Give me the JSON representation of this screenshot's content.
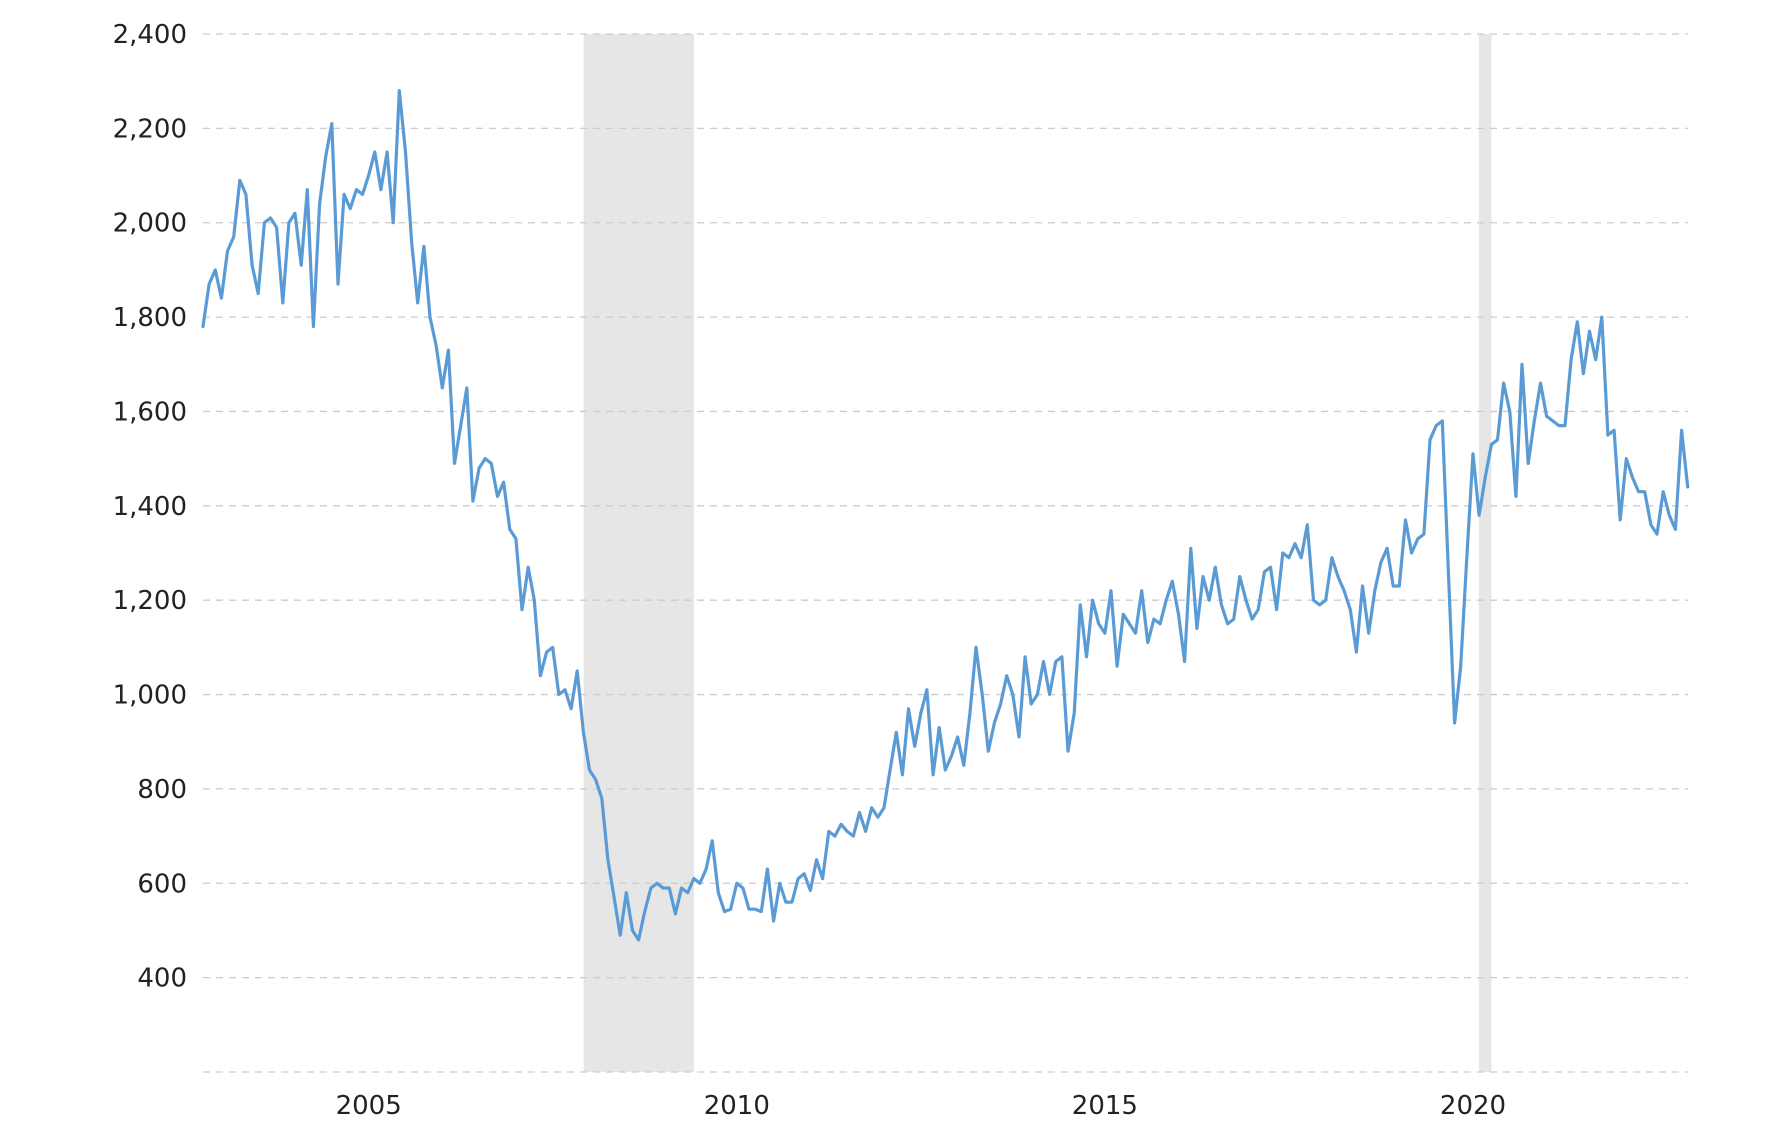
{
  "colors": {
    "line": "#5b9bd5",
    "recession": "#e6e6e6",
    "grid": "#cccccc",
    "text": "#222222"
  },
  "chart_data": {
    "type": "line",
    "title": "",
    "xlabel": "",
    "ylabel": "",
    "xlim": [
      2002.75,
      2022.92
    ],
    "ylim": [
      200,
      2400
    ],
    "grid": true,
    "y_ticks": [
      400,
      600,
      800,
      1000,
      1200,
      1400,
      1600,
      1800,
      2000,
      2200,
      2400
    ],
    "y_tick_labels": [
      "400",
      "600",
      "800",
      "1,000",
      "1,200",
      "1,400",
      "1,600",
      "1,800",
      "2,000",
      "2,200",
      "2,400"
    ],
    "x_ticks": [
      2005,
      2010,
      2015,
      2020
    ],
    "x_tick_labels": [
      "2005",
      "2010",
      "2015",
      "2020"
    ],
    "recessions": [
      {
        "start": 2007.92,
        "end": 2009.42
      },
      {
        "start": 2020.08,
        "end": 2020.25
      }
    ],
    "series": [
      {
        "x_start": 2002.75,
        "x_step": 0.08333,
        "values": [
          1780,
          1870,
          1900,
          1840,
          1940,
          1970,
          2090,
          2060,
          1910,
          1850,
          2000,
          2010,
          1990,
          1830,
          2000,
          2020,
          1910,
          2070,
          1780,
          2040,
          2140,
          2210,
          1870,
          2060,
          2030,
          2070,
          2060,
          2100,
          2150,
          2070,
          2150,
          2000,
          2280,
          2150,
          1960,
          1830,
          1950,
          1800,
          1740,
          1650,
          1730,
          1490,
          1570,
          1650,
          1410,
          1480,
          1500,
          1490,
          1420,
          1450,
          1350,
          1330,
          1180,
          1270,
          1200,
          1040,
          1090,
          1100,
          1000,
          1010,
          970,
          1050,
          920,
          840,
          820,
          780,
          650,
          570,
          490,
          580,
          500,
          480,
          540,
          590,
          600,
          590,
          590,
          535,
          590,
          580,
          610,
          600,
          630,
          690,
          580,
          540,
          545,
          600,
          590,
          545,
          545,
          540,
          630,
          520,
          600,
          560,
          560,
          610,
          620,
          585,
          650,
          610,
          710,
          700,
          725,
          710,
          700,
          750,
          710,
          760,
          740,
          760,
          840,
          920,
          830,
          970,
          890,
          960,
          1010,
          830,
          930,
          840,
          870,
          910,
          850,
          960,
          1100,
          1000,
          880,
          940,
          980,
          1040,
          1000,
          910,
          1080,
          980,
          1000,
          1070,
          1000,
          1070,
          1080,
          880,
          960,
          1190,
          1080,
          1200,
          1150,
          1130,
          1220,
          1060,
          1170,
          1150,
          1130,
          1220,
          1110,
          1160,
          1150,
          1200,
          1240,
          1170,
          1070,
          1310,
          1140,
          1250,
          1200,
          1270,
          1190,
          1150,
          1160,
          1250,
          1200,
          1160,
          1180,
          1260,
          1270,
          1180,
          1300,
          1290,
          1320,
          1290,
          1360,
          1200,
          1190,
          1200,
          1290,
          1250,
          1220,
          1180,
          1090,
          1230,
          1130,
          1220,
          1280,
          1310,
          1230,
          1230,
          1370,
          1300,
          1330,
          1340,
          1540,
          1570,
          1580,
          1260,
          940,
          1060,
          1290,
          1510,
          1380,
          1460,
          1530,
          1540,
          1660,
          1600,
          1420,
          1700,
          1490,
          1580,
          1660,
          1590,
          1580,
          1570,
          1570,
          1710,
          1790,
          1680,
          1770,
          1710,
          1800,
          1550,
          1560,
          1370,
          1500,
          1460,
          1430,
          1430,
          1360,
          1340,
          1430,
          1380,
          1350,
          1560,
          1440
        ]
      }
    ]
  }
}
